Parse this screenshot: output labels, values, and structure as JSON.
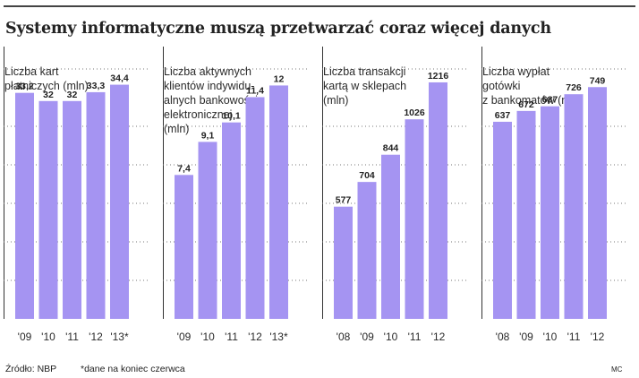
{
  "title": "Systemy informatyczne muszą przetwarzać coraz więcej danych",
  "colors": {
    "bar": "#a594f2",
    "grid": "#777777",
    "axis": "#333333"
  },
  "chart_data": [
    {
      "type": "bar",
      "title_lines": [
        "Liczba kart",
        "płatniczych (mln)"
      ],
      "categories": [
        "'09",
        "'10",
        "'11",
        "'12",
        "'13*"
      ],
      "values": [
        33.2,
        32,
        32,
        33.3,
        34.4
      ],
      "value_labels": [
        "33,2",
        "32",
        "32",
        "33,3",
        "34,4"
      ],
      "ylim": [
        0,
        40
      ]
    },
    {
      "type": "bar",
      "title_lines": [
        "Liczba aktywnych",
        "klientów indywidu-",
        "alnych bankowości",
        "elektronicznej",
        "(mln)"
      ],
      "categories": [
        "'09",
        "'10",
        "'11",
        "'12",
        "'13*"
      ],
      "values": [
        7.4,
        9.1,
        10.1,
        11.4,
        12
      ],
      "value_labels": [
        "7,4",
        "9,1",
        "10,1",
        "11,4",
        "12"
      ],
      "ylim": [
        0,
        14
      ]
    },
    {
      "type": "bar",
      "title_lines": [
        "Liczba transakcji",
        "kartą w sklepach",
        "(mln)"
      ],
      "categories": [
        "'08",
        "'09",
        "'10",
        "'11",
        "'12"
      ],
      "values": [
        577,
        704,
        844,
        1026,
        1216
      ],
      "value_labels": [
        "577",
        "704",
        "844",
        "1026",
        "1216"
      ],
      "ylim": [
        0,
        1400
      ]
    },
    {
      "type": "bar",
      "title_lines": [
        "Liczba wypłat",
        "gotówki",
        "z bankomatów (mln)"
      ],
      "categories": [
        "'08",
        "'09",
        "'10",
        "'11",
        "'12"
      ],
      "values": [
        637,
        672,
        687,
        726,
        749
      ],
      "value_labels": [
        "637",
        "672",
        "687",
        "726",
        "749"
      ],
      "ylim": [
        0,
        880
      ]
    }
  ],
  "footer": {
    "source": "Źródło: NBP",
    "note": "*dane na koniec czerwca",
    "credit": "MC"
  }
}
